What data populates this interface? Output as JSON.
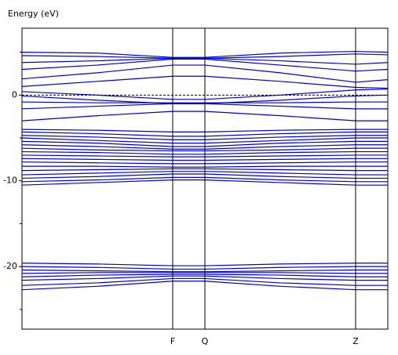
{
  "chart_data": {
    "type": "band-structure",
    "y_label": "Energy (eV)",
    "x": [
      0,
      96,
      192,
      233,
      329,
      425,
      466
    ],
    "xlim": [
      0,
      466
    ],
    "xticks": [
      {
        "value": 192,
        "label": "F"
      },
      {
        "value": 233,
        "label": "Q"
      },
      {
        "value": 425,
        "label": "Z"
      }
    ],
    "ylim": [
      -27.3,
      7.8
    ],
    "yticks": [
      -20,
      -10,
      0
    ],
    "minor_yticks": [
      -25,
      -15,
      -5,
      5
    ],
    "fermi_level": 0,
    "color": "#0000cc",
    "bands": [
      [
        5.0,
        4.9,
        4.4,
        4.4,
        4.9,
        5.1,
        5.0
      ],
      [
        4.6,
        4.5,
        4.3,
        4.3,
        4.5,
        4.8,
        4.7
      ],
      [
        3.8,
        4.0,
        4.3,
        4.3,
        4.0,
        3.6,
        3.8
      ],
      [
        3.0,
        3.5,
        4.2,
        4.2,
        3.5,
        2.8,
        3.0
      ],
      [
        1.9,
        2.6,
        3.5,
        3.5,
        2.6,
        1.5,
        1.8
      ],
      [
        1.0,
        1.6,
        2.2,
        2.2,
        1.6,
        0.9,
        0.8
      ],
      [
        0.4,
        0.0,
        -0.5,
        -0.5,
        0.0,
        0.6,
        0.7
      ],
      [
        -0.1,
        -0.6,
        -1.0,
        -1.0,
        -0.6,
        -0.1,
        0.0
      ],
      [
        -0.8,
        -0.9,
        -0.9,
        -0.9,
        -0.9,
        -0.8,
        -0.8
      ],
      [
        -1.6,
        -1.3,
        -1.0,
        -1.0,
        -1.3,
        -1.6,
        -1.6
      ],
      [
        -3.0,
        -2.4,
        -1.9,
        -1.9,
        -2.4,
        -3.0,
        -3.0
      ],
      [
        -4.0,
        -4.1,
        -4.3,
        -4.3,
        -4.1,
        -4.0,
        -4.0
      ],
      [
        -4.3,
        -4.5,
        -4.8,
        -4.8,
        -4.5,
        -4.3,
        -4.3
      ],
      [
        -4.7,
        -4.9,
        -5.2,
        -5.2,
        -4.9,
        -4.7,
        -4.7
      ],
      [
        -5.0,
        -5.3,
        -5.6,
        -5.6,
        -5.3,
        -5.0,
        -5.0
      ],
      [
        -5.4,
        -5.6,
        -6.0,
        -6.0,
        -5.6,
        -5.4,
        -5.4
      ],
      [
        -5.8,
        -6.0,
        -6.3,
        -6.3,
        -6.0,
        -5.8,
        -5.8
      ],
      [
        -6.2,
        -6.4,
        -6.5,
        -6.5,
        -6.4,
        -6.2,
        -6.2
      ],
      [
        -6.6,
        -6.7,
        -6.9,
        -6.9,
        -6.7,
        -6.6,
        -6.6
      ],
      [
        -7.0,
        -7.1,
        -7.2,
        -7.2,
        -7.1,
        -7.0,
        -7.0
      ],
      [
        -7.4,
        -7.5,
        -7.6,
        -7.6,
        -7.5,
        -7.4,
        -7.4
      ],
      [
        -7.8,
        -7.9,
        -8.0,
        -8.0,
        -7.9,
        -7.8,
        -7.8
      ],
      [
        -8.3,
        -8.3,
        -8.4,
        -8.4,
        -8.3,
        -8.3,
        -8.3
      ],
      [
        -8.8,
        -8.7,
        -8.6,
        -8.6,
        -8.7,
        -8.8,
        -8.8
      ],
      [
        -9.3,
        -9.1,
        -8.9,
        -8.9,
        -9.1,
        -9.3,
        -9.3
      ],
      [
        -9.7,
        -9.5,
        -9.2,
        -9.2,
        -9.5,
        -9.7,
        -9.7
      ],
      [
        -10.1,
        -9.9,
        -9.6,
        -9.6,
        -9.9,
        -10.1,
        -10.1
      ],
      [
        -10.5,
        -10.2,
        -9.9,
        -9.9,
        -10.2,
        -10.5,
        -10.5
      ],
      [
        -19.6,
        -19.7,
        -19.9,
        -19.9,
        -19.7,
        -19.6,
        -19.6
      ],
      [
        -20.0,
        -20.1,
        -20.3,
        -20.3,
        -20.1,
        -20.0,
        -20.0
      ],
      [
        -20.4,
        -20.5,
        -20.6,
        -20.6,
        -20.5,
        -20.4,
        -20.4
      ],
      [
        -20.8,
        -20.7,
        -20.7,
        -20.7,
        -20.7,
        -20.8,
        -20.8
      ],
      [
        -21.2,
        -21.0,
        -20.9,
        -20.9,
        -21.0,
        -21.2,
        -21.2
      ],
      [
        -21.6,
        -21.4,
        -21.1,
        -21.1,
        -21.4,
        -21.6,
        -21.6
      ],
      [
        -22.2,
        -21.9,
        -21.4,
        -21.4,
        -21.9,
        -22.2,
        -22.2
      ],
      [
        -22.7,
        -22.3,
        -21.7,
        -21.7,
        -22.3,
        -22.7,
        -22.7
      ]
    ]
  }
}
